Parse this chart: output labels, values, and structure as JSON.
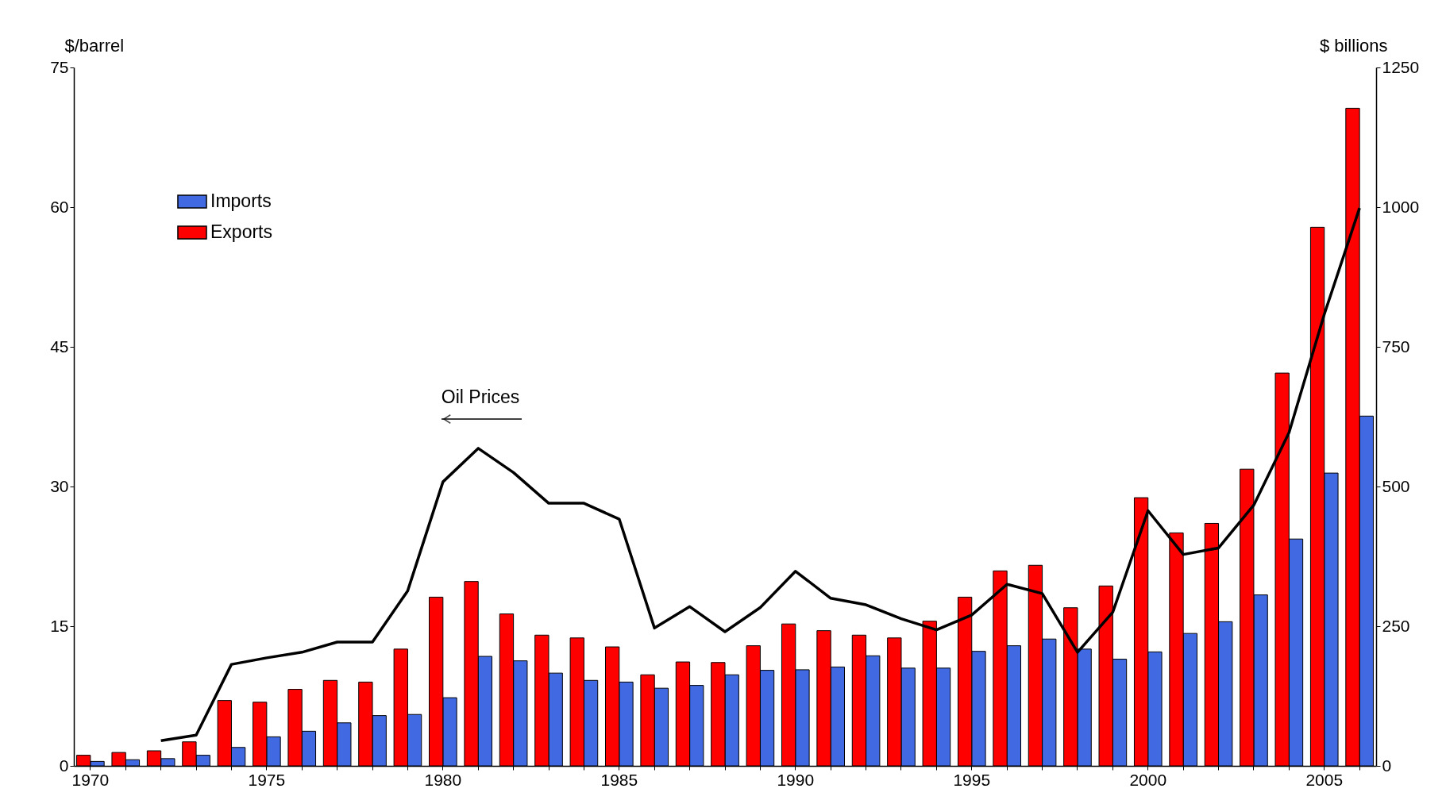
{
  "chart_data": {
    "type": "bar",
    "ylabel": "$/barrel",
    "y2label": "$ billions",
    "categories": [
      "1970",
      null,
      null,
      null,
      null,
      "1975",
      null,
      null,
      null,
      null,
      "1980",
      null,
      null,
      null,
      null,
      "1985",
      null,
      null,
      null,
      null,
      "1990",
      null,
      null,
      null,
      null,
      "1995",
      null,
      null,
      null,
      null,
      "2000",
      null,
      null,
      null,
      null,
      "2005",
      null
    ],
    "series": [
      {
        "name": "Imports",
        "axis": "y2",
        "color": "#4169e1",
        "values": [
          8,
          11,
          13,
          19,
          33,
          52,
          62,
          77,
          90,
          92,
          122,
          196,
          188,
          166,
          153,
          150,
          139,
          144,
          163,
          171,
          172,
          177,
          197,
          175,
          175,
          205,
          215,
          227,
          209,
          191,
          204,
          237,
          258,
          306,
          406,
          524,
          626
        ]
      },
      {
        "name": "Exports",
        "axis": "y2",
        "color": "#ff0000",
        "values": [
          19,
          24,
          27,
          43,
          117,
          114,
          137,
          153,
          150,
          209,
          302,
          330,
          272,
          234,
          229,
          213,
          163,
          186,
          185,
          215,
          254,
          242,
          234,
          229,
          259,
          302,
          349,
          359,
          283,
          322,
          480,
          417,
          434,
          531,
          703,
          964,
          1177
        ]
      },
      {
        "type": "line",
        "color": "#000000",
        "values": [
          null,
          null,
          2.7,
          3.3,
          10.9,
          11.6,
          12.2,
          13.3,
          13.3,
          18.8,
          30.5,
          34.1,
          31.5,
          28.2,
          28.2,
          26.5,
          14.8,
          17.1,
          14.4,
          17.0,
          20.9,
          18.0,
          17.3,
          15.8,
          14.6,
          16.2,
          19.5,
          18.5,
          12.2,
          16.5,
          27.4,
          22.7,
          23.4,
          28.0,
          35.8,
          48.5,
          59.9
        ]
      }
    ],
    "ylim": [
      0,
      75
    ],
    "yticks": [
      0,
      15,
      30,
      45,
      60,
      75
    ],
    "y2lim": [
      0,
      1250
    ],
    "y2ticks": [
      0,
      250,
      500,
      750,
      1000,
      1250
    ],
    "grid": false,
    "legend": "top left",
    "annotations": [
      "Oil Prices"
    ]
  }
}
